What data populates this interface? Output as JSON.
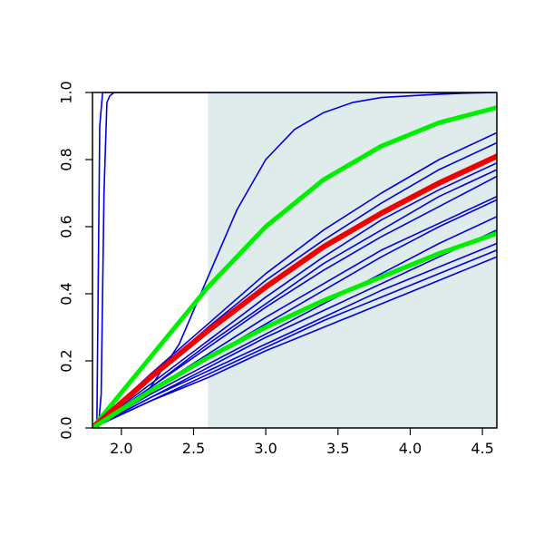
{
  "chart_data": {
    "type": "line",
    "title": "",
    "xlabel": "",
    "ylabel": "",
    "xlim": [
      1.8,
      4.6
    ],
    "ylim": [
      0.0,
      1.0
    ],
    "grid": false,
    "legend": "none",
    "x_ticks": [
      {
        "value": 2.0,
        "label": "2.0"
      },
      {
        "value": 2.5,
        "label": "2.5"
      },
      {
        "value": 3.0,
        "label": "3.0"
      },
      {
        "value": 3.5,
        "label": "3.5"
      },
      {
        "value": 4.0,
        "label": "4.0"
      },
      {
        "value": 4.5,
        "label": "4.5"
      }
    ],
    "y_ticks": [
      {
        "value": 0.0,
        "label": "0.0"
      },
      {
        "value": 0.2,
        "label": "0.2"
      },
      {
        "value": 0.4,
        "label": "0.4"
      },
      {
        "value": 0.6,
        "label": "0.6"
      },
      {
        "value": 0.8,
        "label": "0.8"
      },
      {
        "value": 1.0,
        "label": "1.0"
      }
    ],
    "shaded_region": {
      "x_from": 2.6,
      "x_to": 4.6,
      "color": "#dfeceb"
    },
    "colors": {
      "individual": "#0000dd",
      "central": "#ee0000",
      "bound": "#00ee00",
      "frame": "#000000"
    },
    "series": [
      {
        "role": "individual",
        "color": "#0000dd",
        "x": [
          1.8,
          1.83,
          1.85,
          1.87,
          1.89,
          1.91,
          2.0,
          4.6
        ],
        "y": [
          0.0,
          0.0,
          0.9,
          1.0,
          1.0,
          1.0,
          1.0,
          1.0
        ]
      },
      {
        "role": "individual",
        "color": "#0000dd",
        "x": [
          1.8,
          1.84,
          1.86,
          1.88,
          1.9,
          1.92,
          1.95,
          2.0,
          4.6
        ],
        "y": [
          0.0,
          0.0,
          0.1,
          0.7,
          0.97,
          0.99,
          1.0,
          1.0,
          1.0
        ]
      },
      {
        "role": "individual",
        "color": "#0000dd",
        "x": [
          1.8,
          2.0,
          2.2,
          2.4,
          2.6,
          2.8,
          3.0,
          3.2,
          3.4,
          3.6,
          3.8,
          4.0,
          4.2,
          4.4,
          4.6
        ],
        "y": [
          0.0,
          0.05,
          0.12,
          0.25,
          0.45,
          0.65,
          0.8,
          0.89,
          0.94,
          0.97,
          0.985,
          0.99,
          0.995,
          0.998,
          1.0
        ]
      },
      {
        "role": "individual",
        "color": "#0000dd",
        "x": [
          1.8,
          2.2,
          2.6,
          3.0,
          3.4,
          3.8,
          4.2,
          4.6
        ],
        "y": [
          0.0,
          0.16,
          0.31,
          0.46,
          0.59,
          0.7,
          0.8,
          0.88
        ]
      },
      {
        "role": "individual",
        "color": "#0000dd",
        "x": [
          1.8,
          2.2,
          2.6,
          3.0,
          3.4,
          3.8,
          4.2,
          4.6
        ],
        "y": [
          0.0,
          0.15,
          0.3,
          0.44,
          0.56,
          0.67,
          0.77,
          0.85
        ]
      },
      {
        "role": "individual",
        "color": "#0000dd",
        "x": [
          1.8,
          2.2,
          2.6,
          3.0,
          3.4,
          3.8,
          4.2,
          4.6
        ],
        "y": [
          0.0,
          0.13,
          0.26,
          0.39,
          0.51,
          0.62,
          0.71,
          0.79
        ]
      },
      {
        "role": "individual",
        "color": "#0000dd",
        "x": [
          1.8,
          2.2,
          2.6,
          3.0,
          3.4,
          3.8,
          4.2,
          4.6
        ],
        "y": [
          0.0,
          0.12,
          0.25,
          0.37,
          0.49,
          0.59,
          0.69,
          0.77
        ]
      },
      {
        "role": "individual",
        "color": "#0000dd",
        "x": [
          1.8,
          2.2,
          2.6,
          3.0,
          3.4,
          3.8,
          4.2,
          4.6
        ],
        "y": [
          0.0,
          0.12,
          0.24,
          0.36,
          0.47,
          0.57,
          0.66,
          0.75
        ]
      },
      {
        "role": "individual",
        "color": "#0000dd",
        "x": [
          1.8,
          2.2,
          2.6,
          3.0,
          3.4,
          3.8,
          4.2,
          4.6
        ],
        "y": [
          0.0,
          0.11,
          0.22,
          0.33,
          0.43,
          0.53,
          0.61,
          0.69
        ]
      },
      {
        "role": "individual",
        "color": "#0000dd",
        "x": [
          1.8,
          2.2,
          2.6,
          3.0,
          3.4,
          3.8,
          4.2,
          4.6
        ],
        "y": [
          0.0,
          0.11,
          0.21,
          0.31,
          0.41,
          0.51,
          0.6,
          0.68
        ]
      },
      {
        "role": "individual",
        "color": "#0000dd",
        "x": [
          1.8,
          2.2,
          2.6,
          3.0,
          3.4,
          3.8,
          4.2,
          4.6
        ],
        "y": [
          0.0,
          0.1,
          0.19,
          0.28,
          0.37,
          0.46,
          0.55,
          0.63
        ]
      },
      {
        "role": "individual",
        "color": "#0000dd",
        "x": [
          1.8,
          2.2,
          2.6,
          3.0,
          3.4,
          3.8,
          4.2,
          4.6
        ],
        "y": [
          0.0,
          0.09,
          0.18,
          0.27,
          0.35,
          0.43,
          0.51,
          0.59
        ]
      },
      {
        "role": "individual",
        "color": "#0000dd",
        "x": [
          1.8,
          2.2,
          2.6,
          3.0,
          3.4,
          3.8,
          4.2,
          4.6
        ],
        "y": [
          0.0,
          0.09,
          0.17,
          0.25,
          0.33,
          0.41,
          0.48,
          0.55
        ]
      },
      {
        "role": "individual",
        "color": "#0000dd",
        "x": [
          1.8,
          2.2,
          2.6,
          3.0,
          3.4,
          3.8,
          4.2,
          4.6
        ],
        "y": [
          0.0,
          0.08,
          0.16,
          0.24,
          0.32,
          0.39,
          0.46,
          0.53
        ]
      },
      {
        "role": "individual",
        "color": "#0000dd",
        "x": [
          1.8,
          2.2,
          2.6,
          3.0,
          3.4,
          3.8,
          4.2,
          4.6
        ],
        "y": [
          0.0,
          0.08,
          0.15,
          0.23,
          0.3,
          0.37,
          0.44,
          0.51
        ]
      },
      {
        "role": "bound",
        "color": "#00ee00",
        "x": [
          1.8,
          2.2,
          2.6,
          3.0,
          3.4,
          3.8,
          4.2,
          4.6
        ],
        "y": [
          0.0,
          0.21,
          0.42,
          0.6,
          0.74,
          0.84,
          0.91,
          0.955
        ]
      },
      {
        "role": "central",
        "color": "#ee0000",
        "x": [
          1.8,
          2.2,
          2.6,
          3.0,
          3.4,
          3.8,
          4.2,
          4.6
        ],
        "y": [
          0.0,
          0.15,
          0.29,
          0.42,
          0.54,
          0.64,
          0.73,
          0.81
        ]
      },
      {
        "role": "bound",
        "color": "#00ee00",
        "x": [
          1.8,
          2.2,
          2.6,
          3.0,
          3.4,
          3.8,
          4.2,
          4.6
        ],
        "y": [
          0.0,
          0.11,
          0.21,
          0.3,
          0.38,
          0.45,
          0.52,
          0.58
        ]
      }
    ]
  }
}
